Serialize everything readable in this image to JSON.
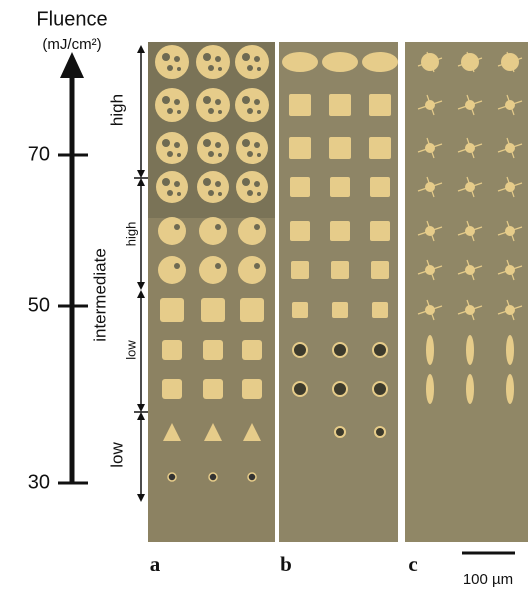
{
  "axis": {
    "title": "Fluence",
    "unit": "(mJ/cm²)",
    "ticks": [
      70,
      50,
      30
    ]
  },
  "ranges": {
    "outer": [
      "high",
      "intermediate",
      "low"
    ],
    "inner": [
      "high",
      "low"
    ]
  },
  "panels": [
    "a",
    "b",
    "c"
  ],
  "scale_bar": "100 µm"
}
